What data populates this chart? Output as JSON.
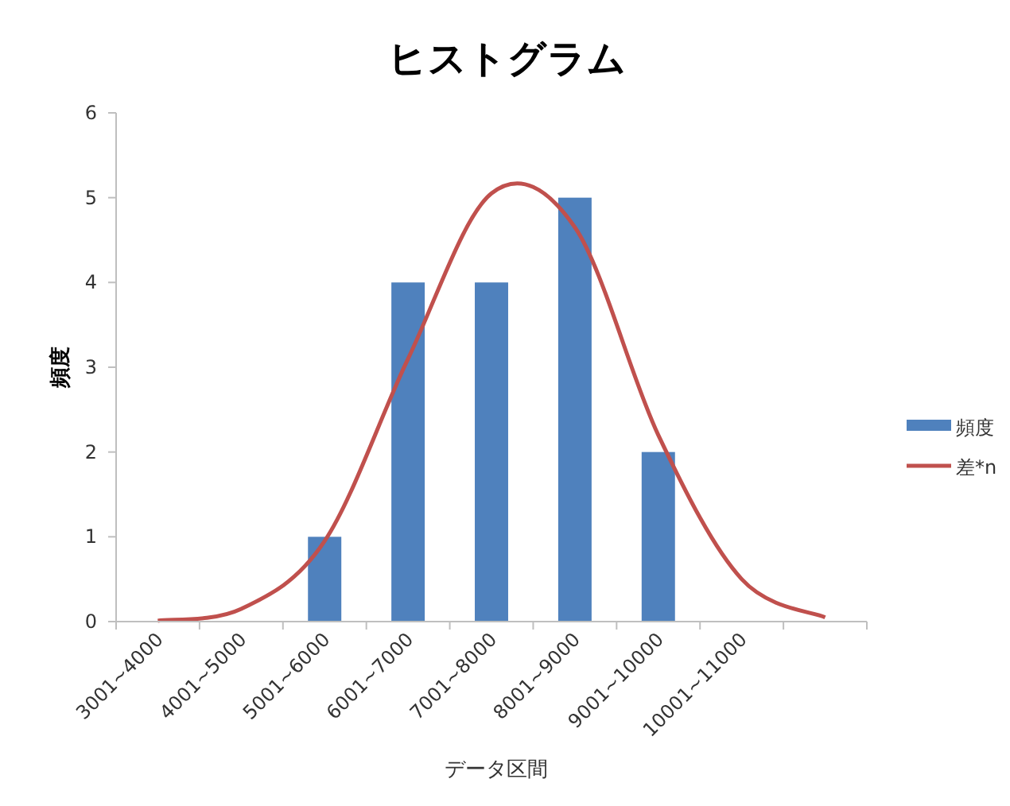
{
  "chart_data": {
    "type": "bar",
    "title": "ヒストグラム",
    "xlabel": "データ区間",
    "ylabel": "頻度",
    "categories": [
      "3001~4000",
      "4001~5000",
      "5001~6000",
      "6001~7000",
      "7001~8000",
      "8001~9000",
      "9001~10000",
      "10001~11000",
      null
    ],
    "series": [
      {
        "name": "頻度",
        "color": "#4f81bd",
        "values": [
          0,
          0,
          1,
          4,
          4,
          5,
          2,
          0,
          null
        ]
      },
      {
        "name": "差*n",
        "type": "line",
        "color": "#c0504d",
        "values": [
          0.01,
          0.15,
          0.95,
          3.1,
          5.05,
          4.65,
          2.2,
          0.5,
          0.05
        ]
      }
    ],
    "ylim": [
      0,
      6
    ],
    "yticks": [
      0,
      1,
      2,
      3,
      4,
      5,
      6
    ],
    "grid": false,
    "legend": "right",
    "marker": "none",
    "line_style": "solid"
  }
}
